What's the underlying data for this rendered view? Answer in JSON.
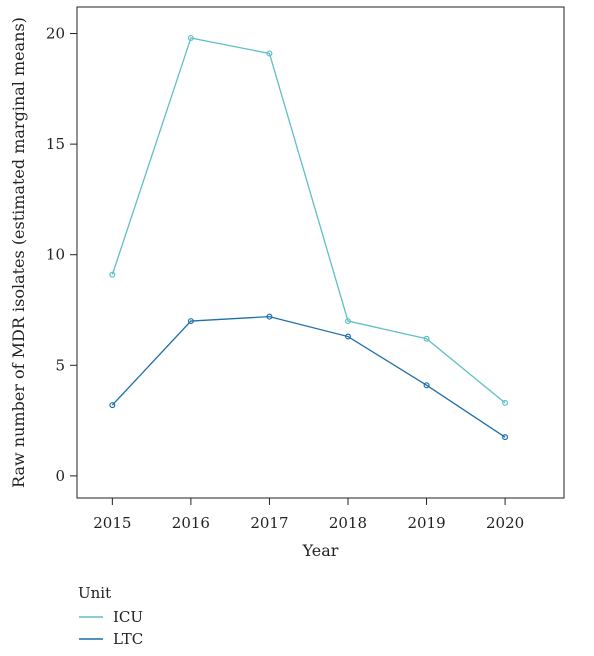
{
  "chart_data": {
    "type": "line",
    "x": [
      2015,
      2016,
      2017,
      2018,
      2019,
      2020
    ],
    "xlabel": "Year",
    "ylabel": "Raw number of MDR isolates (estimated marginal means)",
    "xlim": [
      2014.55,
      2020.75
    ],
    "ylim": [
      -1.0,
      21.2
    ],
    "xticks": [
      2015,
      2016,
      2017,
      2018,
      2019,
      2020
    ],
    "yticks": [
      0,
      5,
      10,
      15,
      20
    ],
    "grid": false,
    "legend": {
      "title": "Unit",
      "placement": "bottom-left"
    },
    "series": [
      {
        "name": "ICU",
        "color": "#5fbfc4",
        "values": [
          9.1,
          19.8,
          19.1,
          7.0,
          6.2,
          3.3
        ]
      },
      {
        "name": "LTC",
        "color": "#1f6fa8",
        "values": [
          3.2,
          7.0,
          7.2,
          6.3,
          4.1,
          1.75
        ]
      }
    ]
  }
}
